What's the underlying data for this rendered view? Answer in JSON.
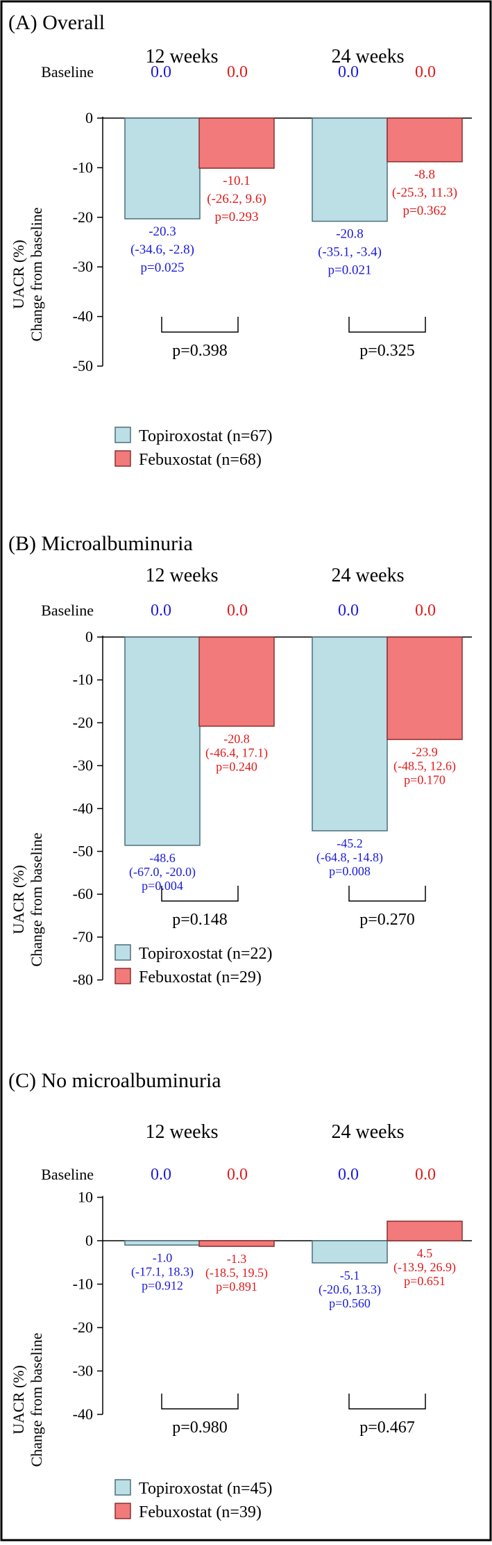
{
  "figure": {
    "baseline_label": "Baseline",
    "ylabel_line1": "UACR (%)",
    "ylabel_line2": "Change from baseline",
    "legend": [
      "Topiroxostat",
      "Febuxostat"
    ]
  },
  "colors": {
    "topiroxostat_fill": "#bcdfe6",
    "topiroxostat_edge": "#4a6f7a",
    "febuxostat_fill": "#f27a7a",
    "febuxostat_edge": "#8a2f2f",
    "topiroxostat_text": "#1a1adb",
    "febuxostat_text": "#e01a1a",
    "axis": "#000000"
  },
  "chart_data": [
    {
      "type": "bar",
      "title": "(A) Overall",
      "categories": [
        "12 weeks",
        "24 weeks"
      ],
      "baseline_values": [
        "0.0",
        "0.0",
        "0.0",
        "0.0"
      ],
      "ylim": [
        -50,
        0
      ],
      "yticks": [
        0,
        -10,
        -20,
        -30,
        -40,
        -50
      ],
      "series": [
        {
          "name": "Topiroxostat",
          "legend_label": "Topiroxostat (n=67)",
          "values": [
            -20.3,
            -20.8
          ],
          "labels": [
            [
              "-20.3",
              "(-34.6, -2.8)",
              "p=0.025"
            ],
            [
              "-20.8",
              "(-35.1, -3.4)",
              "p=0.021"
            ]
          ]
        },
        {
          "name": "Febuxostat",
          "legend_label": "Febuxostat (n=68)",
          "values": [
            -10.1,
            -8.8
          ],
          "labels": [
            [
              "-10.1",
              "(-26.2, 9.6)",
              "p=0.293"
            ],
            [
              "-8.8",
              "(-25.3, 11.3)",
              "p=0.362"
            ]
          ]
        }
      ],
      "comparisons": [
        "p=0.398",
        "p=0.325"
      ]
    },
    {
      "type": "bar",
      "title": "(B) Microalbuminuria",
      "categories": [
        "12 weeks",
        "24 weeks"
      ],
      "baseline_values": [
        "0.0",
        "0.0",
        "0.0",
        "0.0"
      ],
      "ylim": [
        -80,
        0
      ],
      "yticks": [
        0,
        -10,
        -20,
        -30,
        -40,
        -50,
        -60,
        -70,
        -80
      ],
      "series": [
        {
          "name": "Topiroxostat",
          "legend_label": "Topiroxostat (n=22)",
          "values": [
            -48.6,
            -45.2
          ],
          "labels": [
            [
              "-48.6",
              "(-67.0, -20.0)",
              "p=0.004"
            ],
            [
              "-45.2",
              "(-64.8, -14.8)",
              "p=0.008"
            ]
          ]
        },
        {
          "name": "Febuxostat",
          "legend_label": "Febuxostat (n=29)",
          "values": [
            -20.8,
            -23.9
          ],
          "labels": [
            [
              "-20.8",
              "(-46.4, 17.1)",
              "p=0.240"
            ],
            [
              "-23.9",
              "(-48.5, 12.6)",
              "p=0.170"
            ]
          ]
        }
      ],
      "comparisons": [
        "p=0.148",
        "p=0.270"
      ]
    },
    {
      "type": "bar",
      "title": "(C) No microalbuminuria",
      "categories": [
        "12 weeks",
        "24 weeks"
      ],
      "baseline_values": [
        "0.0",
        "0.0",
        "0.0",
        "0.0"
      ],
      "ylim": [
        -40,
        10
      ],
      "yticks": [
        10,
        0,
        -10,
        -20,
        -30,
        -40
      ],
      "series": [
        {
          "name": "Topiroxostat",
          "legend_label": "Topiroxostat (n=45)",
          "values": [
            -1.0,
            -5.1
          ],
          "labels": [
            [
              "-1.0",
              "(-17.1, 18.3)",
              "p=0.912"
            ],
            [
              "-5.1",
              "(-20.6, 13.3)",
              "p=0.560"
            ]
          ]
        },
        {
          "name": "Febuxostat",
          "legend_label": "Febuxostat (n=39)",
          "values": [
            -1.3,
            4.5
          ],
          "labels": [
            [
              "-1.3",
              "(-18.5, 19.5)",
              "p=0.891"
            ],
            [
              "4.5",
              "(-13.9, 26.9)",
              "p=0.651"
            ]
          ]
        }
      ],
      "comparisons": [
        "p=0.980",
        "p=0.467"
      ]
    }
  ]
}
